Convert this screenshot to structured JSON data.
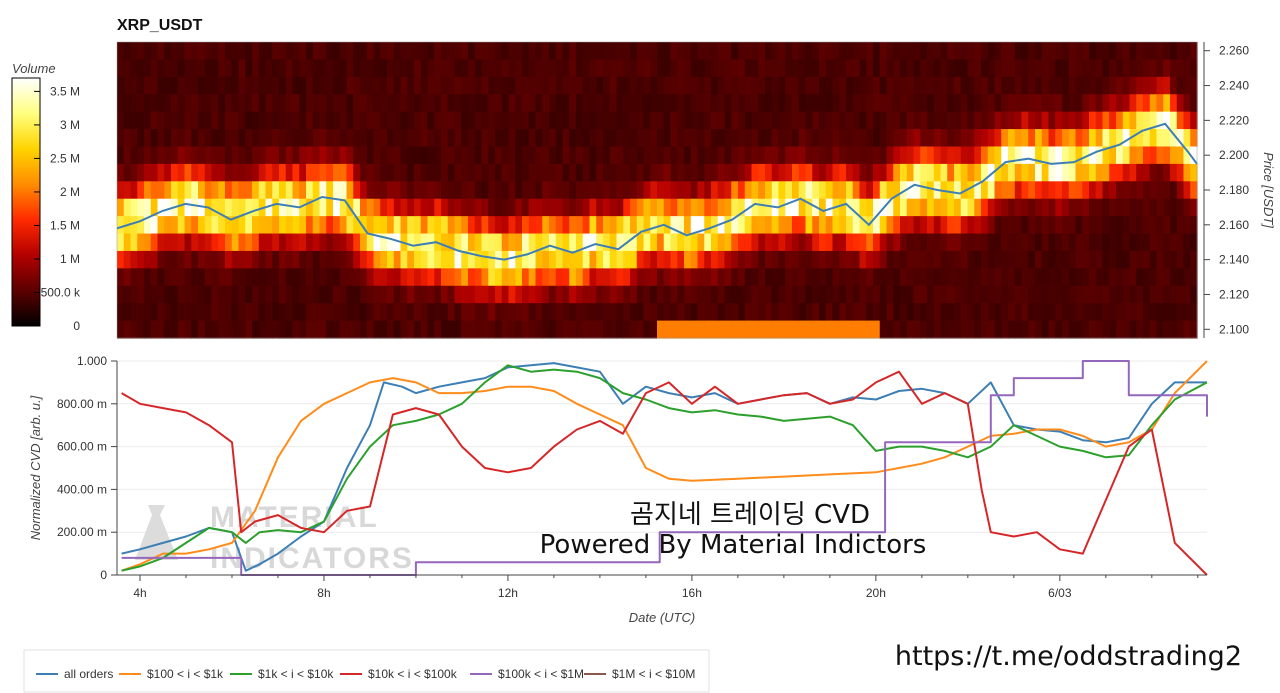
{
  "url": "https://t.me/oddstrading2",
  "overlay": {
    "line1": "곰지네 트레이딩 CVD",
    "line2": "Powered By Material Indictors"
  },
  "watermark": [
    "MATERIAL",
    "INDICATORS"
  ],
  "chart_data": [
    {
      "type": "heatmap",
      "title": "XRP_USDT",
      "ylabel": "Price [USDT]",
      "ylim": [
        2.095,
        2.265
      ],
      "y_ticks": [
        "2.100",
        "2.120",
        "2.140",
        "2.160",
        "2.180",
        "2.200",
        "2.220",
        "2.240",
        "2.260"
      ],
      "y_tick_values": [
        2.1,
        2.12,
        2.14,
        2.16,
        2.18,
        2.2,
        2.22,
        2.24,
        2.26
      ],
      "colorbar": {
        "label": "Volume",
        "ticks": [
          "0",
          "500.0 k",
          "1 M",
          "1.5 M",
          "2 M",
          "2.5 M",
          "3 M",
          "3.5 M"
        ],
        "tick_values": [
          0,
          500000,
          1000000,
          1500000,
          2000000,
          2500000,
          3000000,
          3500000
        ],
        "range": [
          0,
          3700000
        ],
        "colors": [
          "#000000",
          "#5c0000",
          "#b30000",
          "#ff2a00",
          "#ff8c00",
          "#ffd400",
          "#ffff80",
          "#ffffff"
        ]
      },
      "price_line": {
        "color": "#3d7fb5",
        "x_hours": [
          3.5,
          4.0,
          4.5,
          5.0,
          5.5,
          6.0,
          6.5,
          7.0,
          7.5,
          8.0,
          8.5,
          9.0,
          9.5,
          10.0,
          10.5,
          11.0,
          11.5,
          12.0,
          12.5,
          13.0,
          13.5,
          14.0,
          14.5,
          15.0,
          15.5,
          16.0,
          16.5,
          17.0,
          17.5,
          18.0,
          18.5,
          19.0,
          19.5,
          20.0,
          20.5,
          21.0,
          21.5,
          22.0,
          22.5,
          23.0,
          23.5,
          24.0,
          24.5,
          25.0,
          25.5,
          26.0,
          26.5,
          27.0,
          27.2
        ],
        "y": [
          2.158,
          2.162,
          2.168,
          2.172,
          2.17,
          2.163,
          2.168,
          2.172,
          2.17,
          2.176,
          2.174,
          2.155,
          2.152,
          2.148,
          2.15,
          2.145,
          2.142,
          2.14,
          2.143,
          2.148,
          2.144,
          2.149,
          2.146,
          2.156,
          2.16,
          2.154,
          2.158,
          2.163,
          2.172,
          2.17,
          2.175,
          2.168,
          2.172,
          2.16,
          2.175,
          2.183,
          2.18,
          2.178,
          2.185,
          2.196,
          2.198,
          2.195,
          2.196,
          2.202,
          2.206,
          2.214,
          2.218,
          2.202,
          2.195
        ]
      }
    },
    {
      "type": "line",
      "ylabel": "Normalized CVD [arb. u.]",
      "xlabel": "Date (UTC)",
      "ylim": [
        0,
        1.0
      ],
      "xlim_hours": [
        3.5,
        27.2
      ],
      "y_ticks": [
        "0",
        "200.00 m",
        "400.00 m",
        "600.00 m",
        "800.00 m",
        "1.000"
      ],
      "y_tick_values": [
        0,
        0.2,
        0.4,
        0.6,
        0.8,
        1.0
      ],
      "x_ticks": [
        "4h",
        "8h",
        "12h",
        "16h",
        "20h",
        "6/03"
      ],
      "x_tick_hours": [
        4,
        8,
        12,
        16,
        20,
        24
      ],
      "legend_position": "bottom-left",
      "series": [
        {
          "name": "all orders",
          "color": "#3d7fb5",
          "x": [
            3.6,
            4.0,
            4.5,
            5.0,
            5.5,
            6.0,
            6.3,
            6.6,
            7.0,
            7.5,
            8.0,
            8.5,
            9.0,
            9.3,
            9.7,
            10.0,
            10.5,
            11.0,
            11.5,
            12.0,
            12.5,
            13.0,
            13.5,
            14.0,
            14.5,
            15.0,
            15.5,
            16.0,
            16.5,
            17.0,
            17.5,
            18.0,
            18.5,
            19.0,
            19.5,
            20.0,
            20.5,
            21.0,
            21.5,
            22.0,
            22.5,
            23.0,
            23.5,
            24.0,
            24.5,
            25.0,
            25.5,
            26.0,
            26.5,
            27.2
          ],
          "y": [
            0.1,
            0.12,
            0.15,
            0.18,
            0.22,
            0.2,
            0.02,
            0.05,
            0.1,
            0.18,
            0.25,
            0.5,
            0.7,
            0.9,
            0.88,
            0.85,
            0.88,
            0.9,
            0.92,
            0.97,
            0.98,
            0.99,
            0.97,
            0.95,
            0.8,
            0.88,
            0.85,
            0.83,
            0.85,
            0.8,
            0.82,
            0.84,
            0.85,
            0.8,
            0.83,
            0.82,
            0.86,
            0.87,
            0.85,
            0.8,
            0.9,
            0.7,
            0.68,
            0.67,
            0.63,
            0.62,
            0.64,
            0.8,
            0.9,
            0.9
          ]
        },
        {
          "name": "$100 < i < $1k",
          "color": "#ff8c1a",
          "x": [
            3.6,
            4.0,
            4.5,
            5.0,
            5.5,
            6.0,
            6.5,
            7.0,
            7.5,
            8.0,
            8.5,
            9.0,
            9.5,
            10.0,
            10.5,
            11.0,
            11.5,
            12.0,
            12.5,
            13.0,
            13.5,
            14.0,
            14.5,
            15.0,
            15.5,
            16.0,
            17.0,
            18.0,
            19.0,
            20.0,
            20.5,
            21.0,
            21.5,
            22.0,
            22.5,
            23.0,
            23.5,
            24.0,
            24.5,
            25.0,
            25.5,
            26.0,
            26.5,
            27.2
          ],
          "y": [
            0.02,
            0.05,
            0.1,
            0.1,
            0.12,
            0.15,
            0.3,
            0.55,
            0.72,
            0.8,
            0.85,
            0.9,
            0.92,
            0.9,
            0.85,
            0.85,
            0.86,
            0.88,
            0.88,
            0.86,
            0.8,
            0.75,
            0.7,
            0.5,
            0.45,
            0.44,
            0.45,
            0.46,
            0.47,
            0.48,
            0.5,
            0.52,
            0.55,
            0.6,
            0.65,
            0.66,
            0.68,
            0.68,
            0.65,
            0.6,
            0.62,
            0.68,
            0.85,
            1.0
          ]
        },
        {
          "name": "$1k < i < $10k",
          "color": "#2ca02c",
          "x": [
            3.6,
            4.0,
            4.5,
            5.0,
            5.5,
            6.0,
            6.3,
            6.6,
            7.0,
            7.5,
            8.0,
            8.5,
            9.0,
            9.5,
            10.0,
            10.5,
            11.0,
            11.5,
            12.0,
            12.5,
            13.0,
            13.5,
            14.0,
            14.5,
            15.0,
            15.5,
            16.0,
            16.5,
            17.0,
            17.5,
            18.0,
            18.5,
            19.0,
            19.5,
            20.0,
            20.5,
            21.0,
            21.5,
            22.0,
            22.5,
            23.0,
            23.5,
            24.0,
            24.5,
            25.0,
            25.5,
            26.0,
            26.5,
            27.2
          ],
          "y": [
            0.02,
            0.04,
            0.08,
            0.15,
            0.22,
            0.2,
            0.15,
            0.2,
            0.21,
            0.2,
            0.25,
            0.45,
            0.6,
            0.7,
            0.72,
            0.75,
            0.8,
            0.9,
            0.98,
            0.95,
            0.96,
            0.95,
            0.92,
            0.85,
            0.82,
            0.78,
            0.76,
            0.77,
            0.75,
            0.74,
            0.72,
            0.73,
            0.74,
            0.7,
            0.58,
            0.6,
            0.6,
            0.58,
            0.55,
            0.6,
            0.7,
            0.65,
            0.6,
            0.58,
            0.55,
            0.56,
            0.7,
            0.82,
            0.9
          ]
        },
        {
          "name": "$10k < i < $100k",
          "color": "#d62728",
          "x": [
            3.6,
            4.0,
            4.5,
            5.0,
            5.5,
            6.0,
            6.2,
            6.5,
            7.0,
            7.5,
            8.0,
            8.5,
            9.0,
            9.5,
            10.0,
            10.5,
            11.0,
            11.5,
            12.0,
            12.5,
            13.0,
            13.5,
            14.0,
            14.5,
            15.0,
            15.5,
            16.0,
            16.5,
            17.0,
            17.5,
            18.0,
            18.5,
            19.0,
            19.5,
            20.0,
            20.5,
            21.0,
            21.5,
            22.0,
            22.3,
            22.5,
            23.0,
            23.5,
            24.0,
            24.5,
            25.0,
            25.5,
            26.0,
            26.5,
            27.2
          ],
          "y": [
            0.85,
            0.8,
            0.78,
            0.76,
            0.7,
            0.62,
            0.2,
            0.25,
            0.28,
            0.22,
            0.2,
            0.3,
            0.32,
            0.75,
            0.78,
            0.75,
            0.6,
            0.5,
            0.48,
            0.5,
            0.6,
            0.68,
            0.72,
            0.66,
            0.85,
            0.9,
            0.8,
            0.88,
            0.8,
            0.82,
            0.84,
            0.85,
            0.8,
            0.82,
            0.9,
            0.95,
            0.8,
            0.85,
            0.8,
            0.4,
            0.2,
            0.18,
            0.2,
            0.12,
            0.1,
            0.35,
            0.6,
            0.68,
            0.15,
            0.0
          ]
        },
        {
          "name": "$100k < i < $1M",
          "color": "#9467bd",
          "step": true,
          "x": [
            3.6,
            4.5,
            5.5,
            6.2,
            7.5,
            9.0,
            10.0,
            11.0,
            13.0,
            15.0,
            15.3,
            17.0,
            19.0,
            20.0,
            20.2,
            21.0,
            22.0,
            22.5,
            23.0,
            24.0,
            24.5,
            25.0,
            25.5,
            26.0,
            27.2
          ],
          "y": [
            0.08,
            0.08,
            0.08,
            0.0,
            0.0,
            0.0,
            0.06,
            0.06,
            0.06,
            0.06,
            0.2,
            0.2,
            0.2,
            0.2,
            0.62,
            0.62,
            0.62,
            0.84,
            0.92,
            0.92,
            1.0,
            1.0,
            0.84,
            0.84,
            0.74
          ]
        },
        {
          "name": "$1M < i < $10M",
          "color": "#8c564b",
          "x": [],
          "y": []
        }
      ]
    }
  ]
}
